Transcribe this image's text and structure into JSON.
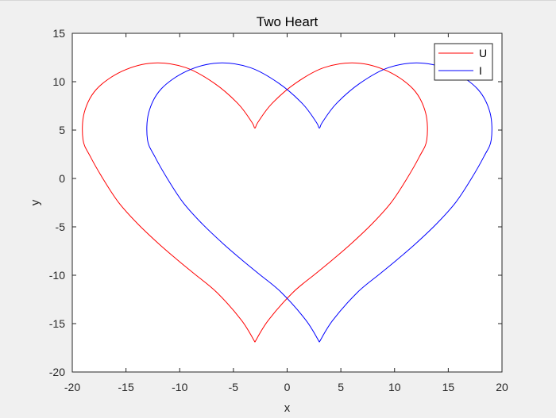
{
  "chart_data": {
    "type": "line",
    "title": "Two Heart",
    "xlabel": "x",
    "ylabel": "y",
    "xlim": [
      -20,
      20
    ],
    "ylim": [
      -20,
      15
    ],
    "xticks": [
      -20,
      -15,
      -10,
      -5,
      0,
      5,
      10,
      15,
      20
    ],
    "yticks": [
      -20,
      -15,
      -10,
      -5,
      0,
      5,
      10,
      15
    ],
    "grid": false,
    "legend_position": "top-right",
    "series": [
      {
        "name": "U",
        "color": "#ff0000",
        "x": [
          -3,
          -1.76,
          0.52,
          2.61,
          4.23,
          5.97,
          7.93,
          9.7,
          11.13,
          12.32,
          13.0,
          12.89,
          11.74,
          9.33,
          6.46,
          3.45,
          0.78,
          -1.45,
          -2.73,
          -3,
          -3.27,
          -4.55,
          -6.78,
          -9.45,
          -12.46,
          -15.33,
          -17.74,
          -18.89,
          -19.0,
          -18.32,
          -17.13,
          -15.7,
          -13.93,
          -11.97,
          -10.23,
          -8.61,
          -6.52,
          -4.24,
          -3
        ],
        "y": [
          -16.9,
          -14.67,
          -11.8,
          -9.88,
          -8.4,
          -6.73,
          -4.66,
          -2.46,
          -0.05,
          2.27,
          4.0,
          6.78,
          9.23,
          11.1,
          11.93,
          11.46,
          9.84,
          7.7,
          5.79,
          5.2,
          5.79,
          7.7,
          9.84,
          11.46,
          11.93,
          11.1,
          9.23,
          6.78,
          4.0,
          2.27,
          -0.05,
          -2.46,
          -4.66,
          -6.73,
          -8.4,
          -9.88,
          -11.8,
          -14.67,
          -16.9
        ]
      },
      {
        "name": "I",
        "color": "#0000ff",
        "x": [
          3,
          4.24,
          6.52,
          8.61,
          10.23,
          11.97,
          13.93,
          15.7,
          17.13,
          18.32,
          19.0,
          18.89,
          17.74,
          15.33,
          12.46,
          9.45,
          6.78,
          4.55,
          3.27,
          3,
          2.73,
          1.45,
          -0.78,
          -3.45,
          -6.46,
          -9.33,
          -11.74,
          -12.89,
          -13.0,
          -12.32,
          -11.13,
          -9.7,
          -7.93,
          -5.97,
          -4.23,
          -2.61,
          -0.52,
          1.76,
          3
        ],
        "y": [
          -16.9,
          -14.67,
          -11.8,
          -9.88,
          -8.4,
          -6.73,
          -4.66,
          -2.46,
          -0.05,
          2.27,
          4.0,
          6.78,
          9.23,
          11.1,
          11.93,
          11.46,
          9.84,
          7.7,
          5.79,
          5.2,
          5.79,
          7.7,
          9.84,
          11.46,
          11.93,
          11.1,
          9.23,
          6.78,
          4.0,
          2.27,
          -0.05,
          -2.46,
          -4.66,
          -6.73,
          -8.4,
          -9.88,
          -11.8,
          -14.67,
          -16.9
        ]
      }
    ]
  }
}
